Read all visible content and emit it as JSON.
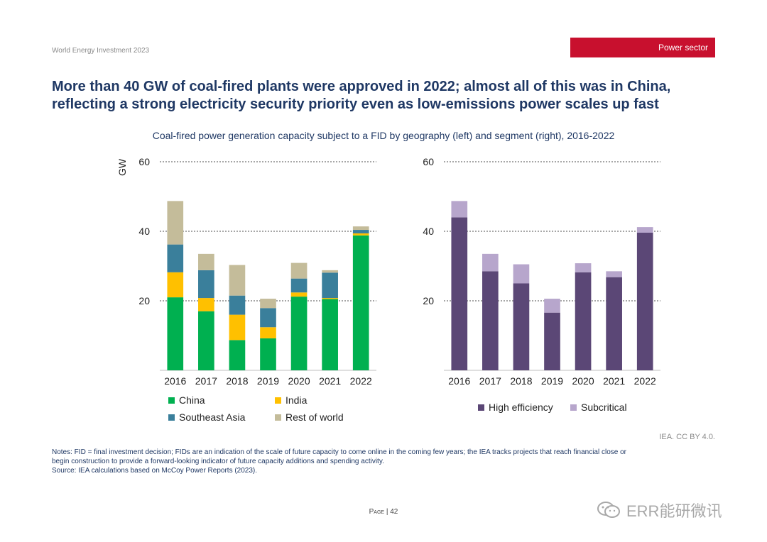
{
  "header": {
    "report_title": "World Energy Investment 2023",
    "section": "Power sector"
  },
  "headline": {
    "line1": "More than 40 GW of coal-fired plants were approved in 2022; almost all of this was in China,",
    "line2": "reflecting a strong electricity security priority even as low-emissions power scales up fast"
  },
  "chart_title": "Coal-fired power generation capacity subject to a FID by geography (left) and segment (right), 2016-2022",
  "chart_data": [
    {
      "type": "bar",
      "stacked": true,
      "ylabel": "GW",
      "ylim": [
        0,
        60
      ],
      "yticks": [
        20,
        40,
        60
      ],
      "grid": "dotted at y ticks",
      "categories": [
        "2016",
        "2017",
        "2018",
        "2019",
        "2020",
        "2021",
        "2022"
      ],
      "series": [
        {
          "name": "China",
          "color": "#00b050",
          "values": [
            21,
            17,
            8.7,
            9.2,
            21.2,
            20.5,
            38.8
          ]
        },
        {
          "name": "India",
          "color": "#ffc000",
          "values": [
            7.2,
            3.8,
            7.3,
            3.2,
            1.2,
            0.3,
            0.6
          ]
        },
        {
          "name": "Southeast Asia",
          "color": "#3a7f9b",
          "values": [
            8,
            8,
            5.5,
            5.5,
            4,
            7.3,
            1
          ]
        },
        {
          "name": "Rest of world",
          "color": "#c4bc9a",
          "values": [
            12.5,
            4.7,
            8.8,
            2.7,
            4.5,
            0.7,
            1
          ]
        }
      ],
      "legend": "bottom"
    },
    {
      "type": "bar",
      "stacked": true,
      "ylabel": "",
      "ylim": [
        0,
        60
      ],
      "yticks": [
        20,
        40,
        60
      ],
      "grid": "dotted at y ticks",
      "categories": [
        "2016",
        "2017",
        "2018",
        "2019",
        "2020",
        "2021",
        "2022"
      ],
      "series": [
        {
          "name": "High efficiency",
          "color": "#5b4776",
          "values": [
            44,
            28.5,
            25,
            16.6,
            28.2,
            26.8,
            39.6
          ]
        },
        {
          "name": "Subcritical",
          "color": "#b7a6cc",
          "values": [
            4.7,
            5,
            5.5,
            4,
            2.6,
            1.7,
            1.6
          ]
        }
      ],
      "legend": "bottom"
    }
  ],
  "credit": "IEA. CC BY 4.0.",
  "notes": {
    "line1": "Notes: FID = final investment decision; FIDs are an indication of the scale of future capacity to come online in the coming few years; the IEA tracks projects that reach financial close or",
    "line2": "begin construction to provide a forward-looking indicator of future capacity additions and spending activity.",
    "source": "Source: IEA calculations based on McCoy Power Reports (2023)."
  },
  "footer": {
    "page_prefix": "Page",
    "page_number": "42"
  },
  "watermark": {
    "icon": "wechat-icon",
    "text": "ERR能研微讯"
  }
}
